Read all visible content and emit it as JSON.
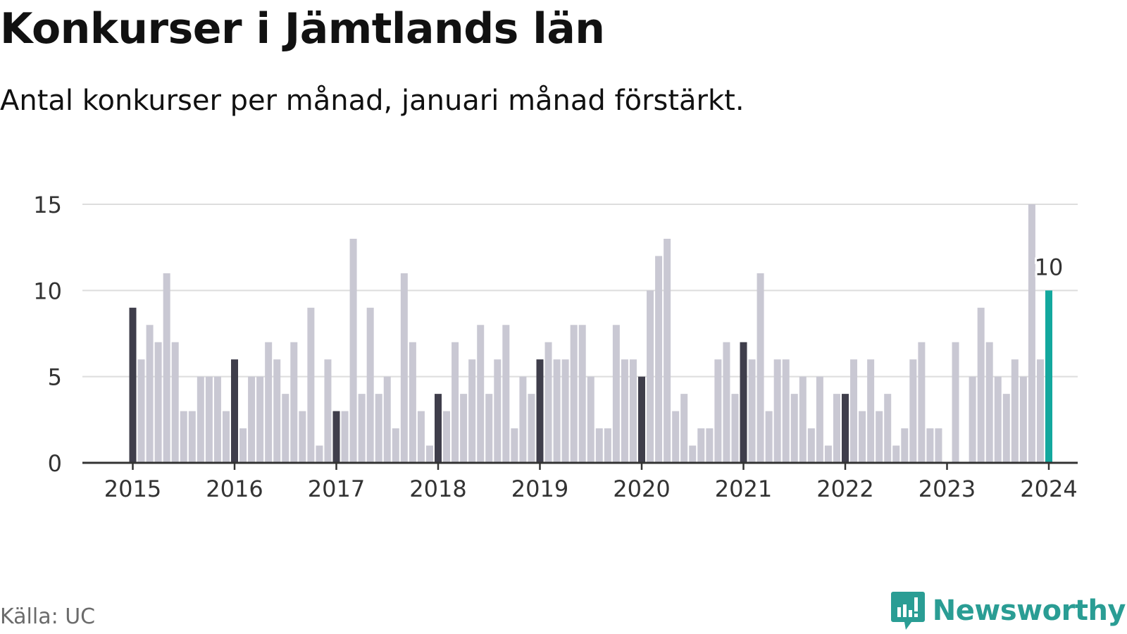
{
  "header": {
    "title": "Konkurser i Jämtlands län",
    "subtitle": "Antal konkurser per månad, januari månad förstärkt."
  },
  "footer": {
    "source": "Källa: UC",
    "brand": "Newsworthy",
    "brand_icon": "bar-chart-speech-bubble-icon"
  },
  "colors": {
    "bar": "#c9c8d3",
    "january_bar": "#3f3e4b",
    "highlight_bar": "#13a89e",
    "gridline": "#dddddd",
    "axis": "#333333",
    "brand": "#2a9d94"
  },
  "chart_data": {
    "type": "bar",
    "start": "2015-01",
    "end": "2024-01",
    "x_tick_labels": [
      "2015",
      "2016",
      "2017",
      "2018",
      "2019",
      "2020",
      "2021",
      "2022",
      "2023",
      "2024"
    ],
    "y_ticks": [
      "0",
      "5",
      "10",
      "15"
    ],
    "ylim": [
      0,
      15
    ],
    "grid": true,
    "values": [
      9,
      6,
      8,
      7,
      11,
      7,
      3,
      3,
      5,
      5,
      5,
      3,
      6,
      2,
      5,
      5,
      7,
      6,
      4,
      7,
      3,
      9,
      1,
      6,
      3,
      3,
      13,
      4,
      9,
      4,
      5,
      2,
      11,
      7,
      3,
      1,
      4,
      3,
      7,
      4,
      6,
      8,
      4,
      6,
      8,
      2,
      5,
      4,
      6,
      7,
      6,
      6,
      8,
      8,
      5,
      2,
      2,
      8,
      6,
      6,
      5,
      10,
      12,
      13,
      3,
      4,
      1,
      2,
      2,
      6,
      7,
      4,
      7,
      6,
      11,
      3,
      6,
      6,
      4,
      5,
      2,
      5,
      1,
      4,
      4,
      6,
      3,
      6,
      3,
      4,
      1,
      2,
      6,
      7,
      2,
      2,
      0,
      7,
      0,
      5,
      9,
      7,
      5,
      4,
      6,
      5,
      15,
      6,
      10
    ],
    "last_value_label": "10"
  }
}
